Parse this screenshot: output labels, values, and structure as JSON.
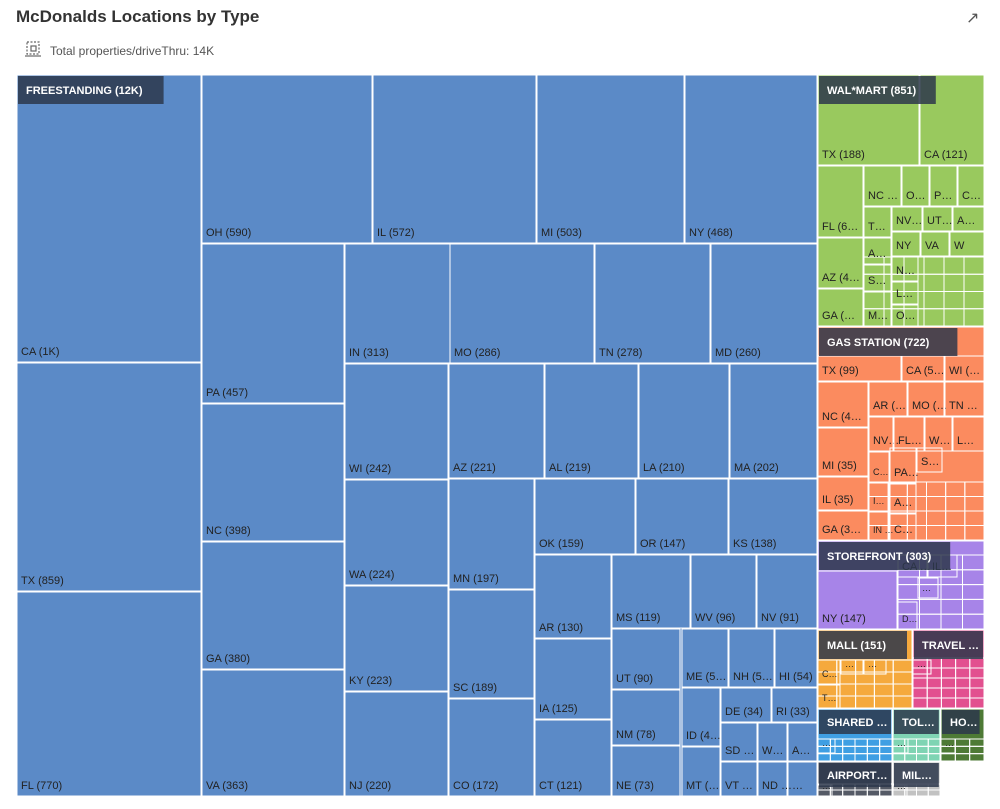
{
  "title": "McDonalds Locations by Type",
  "metric_label": "Total properties/driveThru: 14K",
  "icons": {
    "expand": "expand-arrow-icon",
    "metric": "measure-icon"
  },
  "chart_data": {
    "type": "treemap",
    "groups": [
      {
        "name": "FREESTANDING",
        "label": "FREESTANDING (12K)",
        "color": "#5b8ac7",
        "children": [
          {
            "label": "CA (1K)",
            "value": 1000
          },
          {
            "label": "TX (859)",
            "value": 859
          },
          {
            "label": "FL (770)",
            "value": 770
          },
          {
            "label": "OH (590)",
            "value": 590
          },
          {
            "label": "IL (572)",
            "value": 572
          },
          {
            "label": "MI (503)",
            "value": 503
          },
          {
            "label": "NY (468)",
            "value": 468
          },
          {
            "label": "PA (457)",
            "value": 457
          },
          {
            "label": "NC (398)",
            "value": 398
          },
          {
            "label": "GA (380)",
            "value": 380
          },
          {
            "label": "VA (363)",
            "value": 363
          },
          {
            "label": "IN (313)",
            "value": 313
          },
          {
            "label": "MO (286)",
            "value": 286
          },
          {
            "label": "TN (278)",
            "value": 278
          },
          {
            "label": "MD (260)",
            "value": 260
          },
          {
            "label": "WI (242)",
            "value": 242
          },
          {
            "label": "AZ (221)",
            "value": 221
          },
          {
            "label": "AL (219)",
            "value": 219
          },
          {
            "label": "LA (210)",
            "value": 210
          },
          {
            "label": "MA (202)",
            "value": 202
          },
          {
            "label": "WA (224)",
            "value": 224
          },
          {
            "label": "MN (197)",
            "value": 197
          },
          {
            "label": "OK (159)",
            "value": 159
          },
          {
            "label": "OR (147)",
            "value": 147
          },
          {
            "label": "KS (138)",
            "value": 138
          },
          {
            "label": "KY (223)",
            "value": 223
          },
          {
            "label": "SC (189)",
            "value": 189
          },
          {
            "label": "AR (130)",
            "value": 130
          },
          {
            "label": "MS (119)",
            "value": 119
          },
          {
            "label": "WV (96)",
            "value": 96
          },
          {
            "label": "NV (91)",
            "value": 91
          },
          {
            "label": "IA (125)",
            "value": 125
          },
          {
            "label": "UT (90)",
            "value": 90
          },
          {
            "label": "ME (5…",
            "value": 50
          },
          {
            "label": "NH (5…",
            "value": 50
          },
          {
            "label": "HI (54)",
            "value": 54
          },
          {
            "label": "DE (34)",
            "value": 34
          },
          {
            "label": "RI (33)",
            "value": 33
          },
          {
            "label": "NM (78)",
            "value": 78
          },
          {
            "label": "ID (4…",
            "value": 40
          },
          {
            "label": "SD …",
            "value": 30
          },
          {
            "label": "W…",
            "value": 25
          },
          {
            "label": "A…",
            "value": 25
          },
          {
            "label": "NJ (220)",
            "value": 220
          },
          {
            "label": "CO (172)",
            "value": 172
          },
          {
            "label": "CT (121)",
            "value": 121
          },
          {
            "label": "NE (73)",
            "value": 73
          },
          {
            "label": "MT (…",
            "value": 30
          },
          {
            "label": "VT …",
            "value": 20
          },
          {
            "label": "ND …",
            "value": 20
          },
          {
            "label": "…",
            "value": 15
          }
        ]
      },
      {
        "name": "WAL*MART",
        "label": "WAL*MART (851)",
        "color": "#99c95e",
        "children": [
          {
            "label": "TX (188)",
            "value": 188
          },
          {
            "label": "CA (121)",
            "value": 121
          },
          {
            "label": "FL (6…",
            "value": 60
          },
          {
            "label": "AZ (4…",
            "value": 40
          },
          {
            "label": "GA (…",
            "value": 35
          },
          {
            "label": "NC …",
            "value": 30
          },
          {
            "label": "O…",
            "value": 25
          },
          {
            "label": "P…",
            "value": 20
          },
          {
            "label": "C…",
            "value": 20
          },
          {
            "label": "T…",
            "value": 25
          },
          {
            "label": "NV…",
            "value": 22
          },
          {
            "label": "UT…",
            "value": 22
          },
          {
            "label": "A…",
            "value": 20
          },
          {
            "label": "NY",
            "value": 20
          },
          {
            "label": "VA",
            "value": 18
          },
          {
            "label": "W",
            "value": 16
          },
          {
            "label": "A…",
            "value": 15
          },
          {
            "label": "N…",
            "value": 14
          },
          {
            "label": "S…",
            "value": 13
          },
          {
            "label": "L…",
            "value": 12
          },
          {
            "label": "M…",
            "value": 12
          },
          {
            "label": "O…",
            "value": 11
          }
        ]
      },
      {
        "name": "GAS STATION",
        "label": "GAS STATION (722)",
        "color": "#fb8b5f",
        "children": [
          {
            "label": "TX (99)",
            "value": 99
          },
          {
            "label": "CA (5…",
            "value": 50
          },
          {
            "label": "WI (…",
            "value": 40
          },
          {
            "label": "NC (4…",
            "value": 40
          },
          {
            "label": "AR (…",
            "value": 30
          },
          {
            "label": "MO (…",
            "value": 30
          },
          {
            "label": "TN …",
            "value": 28
          },
          {
            "label": "MI (35)",
            "value": 35
          },
          {
            "label": "IL (35)",
            "value": 35
          },
          {
            "label": "GA (3…",
            "value": 30
          },
          {
            "label": "NV…",
            "value": 20
          },
          {
            "label": "FL…",
            "value": 20
          },
          {
            "label": "W…",
            "value": 18
          },
          {
            "label": "L…",
            "value": 17
          },
          {
            "label": "C…",
            "value": 15
          },
          {
            "label": "PA…",
            "value": 15
          },
          {
            "label": "S…",
            "value": 14
          },
          {
            "label": "I…",
            "value": 13
          },
          {
            "label": "A…",
            "value": 13
          },
          {
            "label": "IN …",
            "value": 12
          },
          {
            "label": "C…",
            "value": 11
          }
        ]
      },
      {
        "name": "STOREFRONT",
        "label": "STOREFRONT (303)",
        "color": "#a784e8",
        "children": [
          {
            "label": "NY (147)",
            "value": 147
          },
          {
            "label": "CA …",
            "value": 30
          },
          {
            "label": "IL…",
            "value": 25
          },
          {
            "label": "D…",
            "value": 20
          },
          {
            "label": "…",
            "value": 15
          }
        ]
      },
      {
        "name": "MALL",
        "label": "MALL (151)",
        "color": "#f5a93d",
        "children": [
          {
            "label": "C…",
            "value": 20
          },
          {
            "label": "T…",
            "value": 15
          },
          {
            "label": "…",
            "value": 12
          },
          {
            "label": "…",
            "value": 10
          }
        ]
      },
      {
        "name": "TRAVEL",
        "label": "TRAVEL …",
        "color": "#e2508f",
        "children": [
          {
            "label": "…",
            "value": 15
          }
        ]
      },
      {
        "name": "SHARED",
        "label": "SHARED …",
        "color": "#3f9fe3",
        "children": [
          {
            "label": "…",
            "value": 10
          }
        ]
      },
      {
        "name": "TOL",
        "label": "TOL…",
        "color": "#7fd4b3",
        "children": [
          {
            "label": "…",
            "value": 8
          }
        ]
      },
      {
        "name": "HO",
        "label": "HO…",
        "color": "#4e7a35",
        "children": [
          {
            "label": "…",
            "value": 8
          }
        ]
      },
      {
        "name": "AIRPORT",
        "label": "AIRPORT…",
        "color": "#555a66",
        "children": [
          {
            "label": "…",
            "value": 8
          }
        ]
      },
      {
        "name": "MIL",
        "label": "MIL…",
        "color": "#c2c2c2",
        "children": [
          {
            "label": "…",
            "value": 6
          }
        ]
      }
    ]
  }
}
